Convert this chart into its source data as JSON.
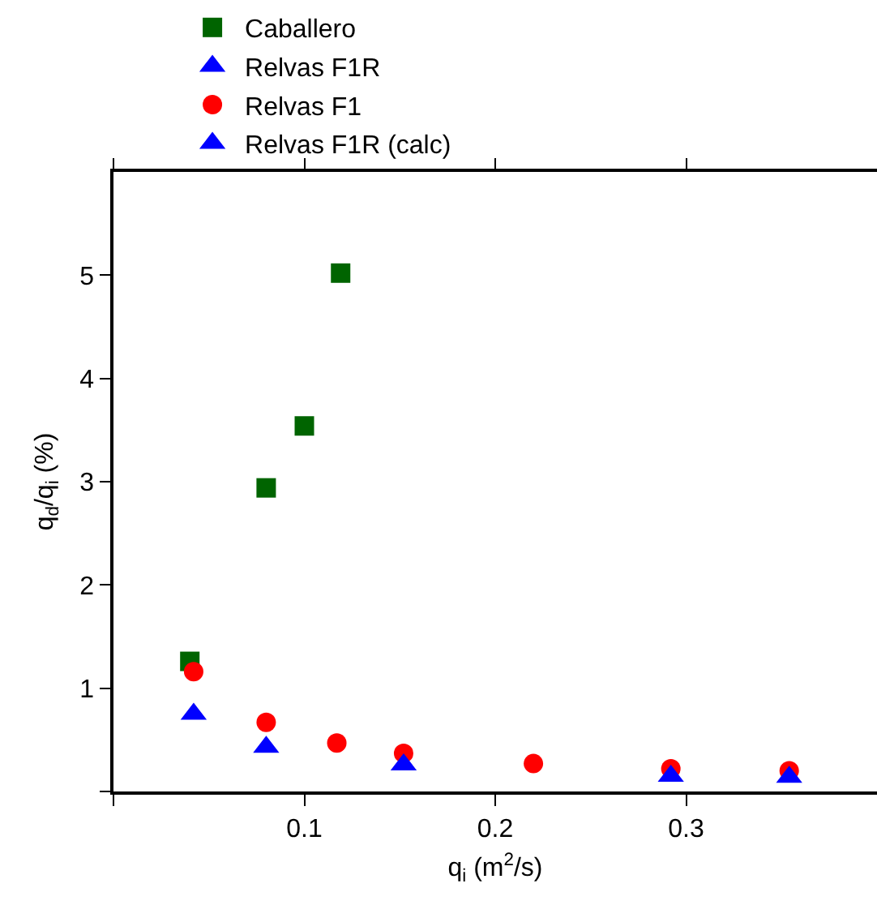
{
  "chart_data": {
    "type": "scatter",
    "xlabel": "q$_{i}$ (m$^{2}$/s)",
    "ylabel": "q$_{d}$/q$_{i}$ (%)",
    "xlim": [
      0,
      0.4
    ],
    "xticks": [
      {
        "value": 0,
        "label": null
      },
      0.1,
      0.2,
      0.3
    ],
    "ylim": [
      0,
      6
    ],
    "yticks": [
      {
        "value": 0,
        "label": null
      },
      1,
      2,
      3,
      4,
      5
    ],
    "grid": false,
    "legend": "top",
    "series": [
      {
        "name": "Caballero",
        "color": "#006400",
        "marker": "square",
        "x": [
          0.04,
          0.08,
          0.1,
          0.119
        ],
        "values": [
          1.26,
          2.94,
          3.54,
          5.02
        ]
      },
      {
        "name": "Relvas F1",
        "color": "#ff0000",
        "marker": "circle",
        "x": [
          0.042,
          0.08,
          0.117,
          0.152,
          0.22,
          0.292,
          0.354
        ],
        "values": [
          1.16,
          0.67,
          0.47,
          0.37,
          0.27,
          0.22,
          0.2
        ]
      },
      {
        "name": "Relvas F1R",
        "color": "#0000ff",
        "marker": "triangle",
        "x": [
          0.08,
          0.152,
          0.292,
          0.354
        ],
        "values": [
          0.43,
          0.26,
          0.15,
          0.14
        ]
      },
      {
        "name": "Relvas F1R (calc)",
        "color": "#0000ff",
        "marker": "triangle",
        "x": [
          0.042
        ],
        "values": [
          0.75
        ]
      }
    ]
  }
}
